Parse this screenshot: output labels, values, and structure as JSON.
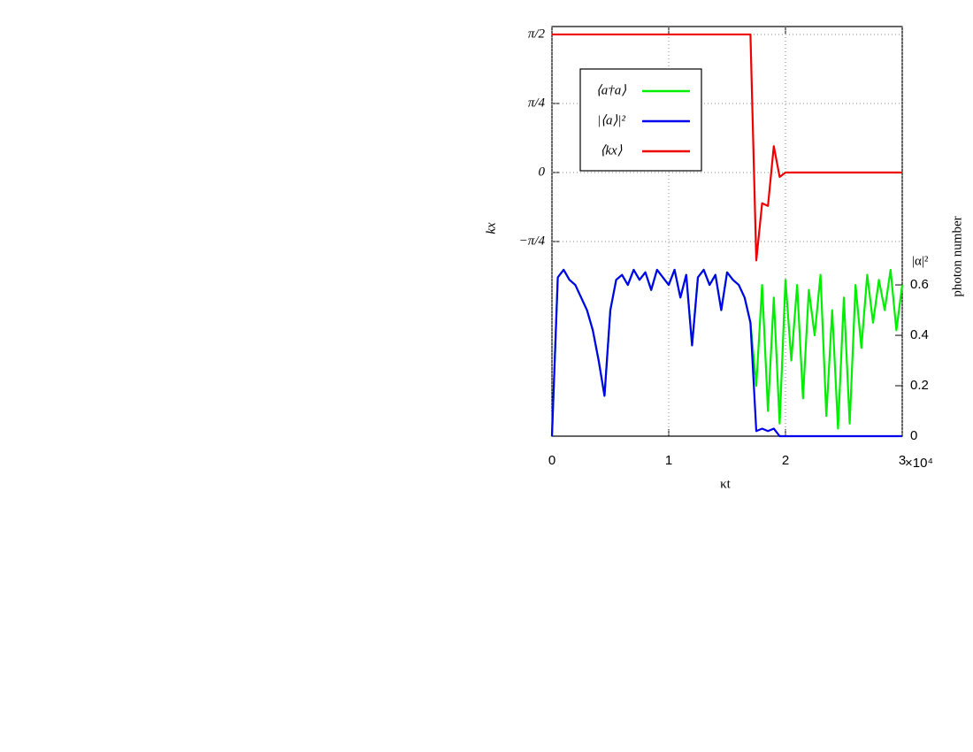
{
  "chart_data": {
    "type": "line",
    "x_label": "κt",
    "y_label": "kx",
    "y2_label": "photon number",
    "y2_top_label": "|α|²",
    "x_multiplier_label": "×10⁴",
    "x": [
      0,
      0.05,
      0.1,
      0.15,
      0.2,
      0.25,
      0.3,
      0.35,
      0.4,
      0.45,
      0.5,
      0.55,
      0.6,
      0.65,
      0.7,
      0.75,
      0.8,
      0.85,
      0.9,
      0.95,
      1.0,
      1.05,
      1.1,
      1.15,
      1.2,
      1.25,
      1.3,
      1.35,
      1.4,
      1.45,
      1.5,
      1.55,
      1.6,
      1.65,
      1.7,
      1.75,
      1.8,
      1.85,
      1.9,
      1.95,
      2.0,
      2.05,
      2.1,
      2.15,
      2.2,
      2.25,
      2.3,
      2.35,
      2.4,
      2.45,
      2.5,
      2.55,
      2.6,
      2.65,
      2.7,
      2.75,
      2.8,
      2.85,
      2.9,
      2.95,
      3.0
    ],
    "series": [
      {
        "name": "⟨a†a⟩",
        "color": "#00ee00",
        "axis": "y2",
        "values": [
          0,
          0.63,
          0.66,
          0.62,
          0.6,
          0.55,
          0.5,
          0.42,
          0.3,
          0.16,
          0.5,
          0.62,
          0.64,
          0.6,
          0.66,
          0.62,
          0.65,
          0.58,
          0.66,
          0.63,
          0.6,
          0.66,
          0.55,
          0.64,
          0.36,
          0.63,
          0.66,
          0.6,
          0.64,
          0.5,
          0.65,
          0.62,
          0.6,
          0.55,
          0.45,
          0.2,
          0.6,
          0.1,
          0.55,
          0.05,
          0.62,
          0.3,
          0.6,
          0.15,
          0.58,
          0.4,
          0.64,
          0.08,
          0.5,
          0.03,
          0.55,
          0.05,
          0.6,
          0.35,
          0.64,
          0.45,
          0.62,
          0.5,
          0.66,
          0.42,
          0.6
        ]
      },
      {
        "name": "|⟨a⟩|²",
        "color": "#0000ee",
        "axis": "y2",
        "values": [
          0,
          0.63,
          0.66,
          0.62,
          0.6,
          0.55,
          0.5,
          0.42,
          0.3,
          0.16,
          0.5,
          0.62,
          0.64,
          0.6,
          0.66,
          0.62,
          0.65,
          0.58,
          0.66,
          0.63,
          0.6,
          0.66,
          0.55,
          0.64,
          0.36,
          0.63,
          0.66,
          0.6,
          0.64,
          0.5,
          0.65,
          0.62,
          0.6,
          0.55,
          0.45,
          0.02,
          0.03,
          0.02,
          0.03,
          0,
          0,
          0,
          0,
          0,
          0,
          0,
          0,
          0,
          0,
          0,
          0,
          0,
          0,
          0,
          0,
          0,
          0,
          0,
          0,
          0,
          0
        ]
      },
      {
        "name": "⟨kx⟩",
        "color": "#ee0000",
        "axis": "y",
        "values": [
          1.5708,
          1.5708,
          1.5708,
          1.5708,
          1.5708,
          1.5708,
          1.5708,
          1.5708,
          1.5708,
          1.5708,
          1.5708,
          1.5708,
          1.5708,
          1.5708,
          1.5708,
          1.5708,
          1.5708,
          1.5708,
          1.5708,
          1.5708,
          1.5708,
          1.5708,
          1.5708,
          1.5708,
          1.5708,
          1.5708,
          1.5708,
          1.5708,
          1.5708,
          1.5708,
          1.5708,
          1.5708,
          1.5708,
          1.5708,
          1.5708,
          -1.0,
          -0.35,
          -0.38,
          0.3,
          -0.05,
          0,
          0,
          0,
          0,
          0,
          0,
          0,
          0,
          0,
          0,
          0,
          0,
          0,
          0,
          0,
          0,
          0,
          0,
          0,
          0,
          0
        ]
      }
    ],
    "xlim": [
      0,
      3
    ],
    "xticks": [
      0,
      1,
      2,
      3
    ],
    "ylim": [
      -3.0,
      1.661
    ],
    "yticks": [
      {
        "value": 1.5708,
        "label": "π/2"
      },
      {
        "value": 0.7854,
        "label": "π/4"
      },
      0,
      {
        "value": -0.7854,
        "label": "−π/4"
      }
    ],
    "y2lim": [
      0,
      1.625
    ],
    "y2ticks": [
      0,
      0.2,
      0.4,
      0.6
    ],
    "grid": true,
    "legend": "upper left"
  }
}
